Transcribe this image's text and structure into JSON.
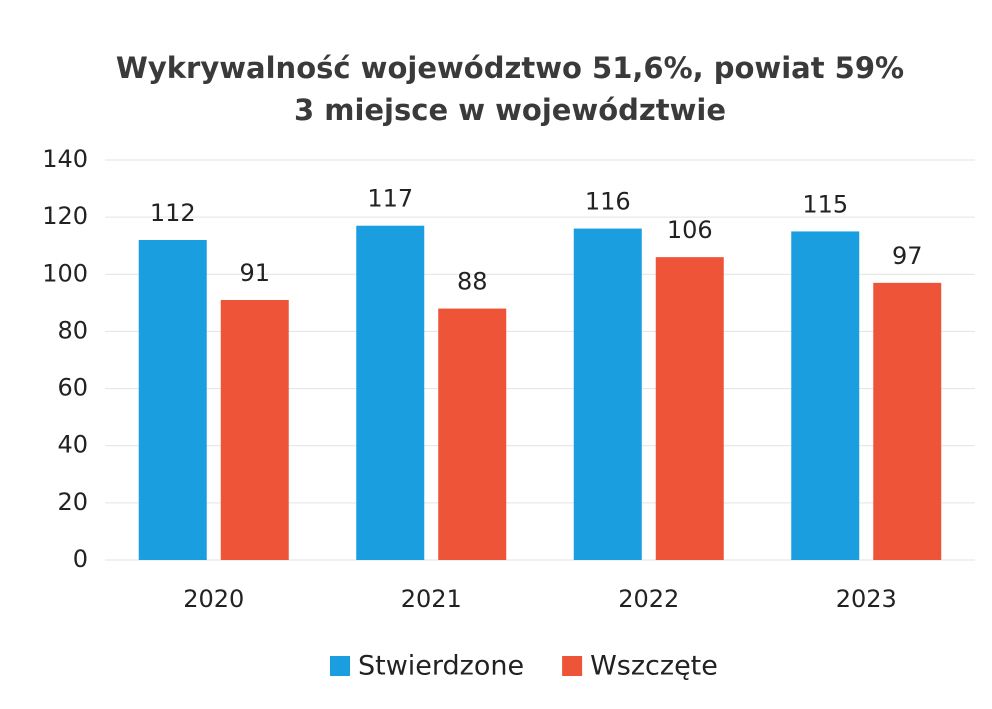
{
  "chart_data": {
    "type": "bar",
    "title": [
      "Wykrywalność województwo 51,6%, powiat 59%",
      "3 miejsce w województwie"
    ],
    "categories": [
      "2020",
      "2021",
      "2022",
      "2023"
    ],
    "series": [
      {
        "name": "Stwierdzone",
        "color": "#1a9ee0",
        "values": [
          112,
          117,
          116,
          115
        ]
      },
      {
        "name": "Wszczęte",
        "color": "#ee5438",
        "values": [
          91,
          88,
          106,
          97
        ]
      }
    ],
    "ylim": [
      0,
      140
    ],
    "yticks": [
      0,
      20,
      40,
      60,
      80,
      100,
      120,
      140
    ],
    "grid": true,
    "legend": "bottom"
  }
}
